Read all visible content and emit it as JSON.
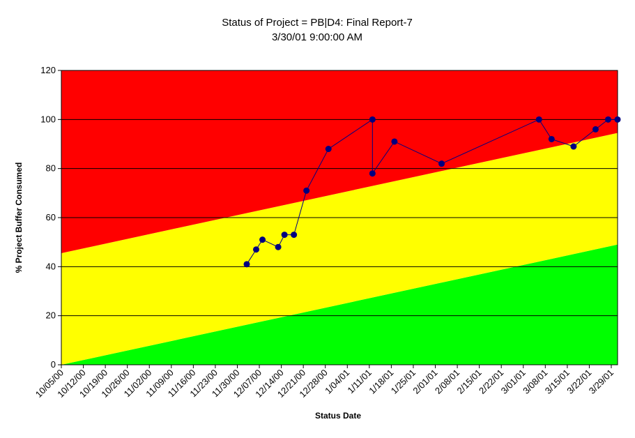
{
  "chart_data": {
    "type": "line",
    "title": "Status of Project = PB|D4: Final Report-7",
    "subtitle": "3/30/01 9:00:00 AM",
    "xlabel": "Status Date",
    "ylabel": "% Project Buffer Consumed",
    "ylim": [
      0,
      120
    ],
    "y_ticks": [
      "0",
      "20",
      "40",
      "60",
      "80",
      "100",
      "120"
    ],
    "y_tick_values": [
      0,
      20,
      40,
      60,
      80,
      100,
      120
    ],
    "x_start": "2000-10-05",
    "x_end": "2001-03-31",
    "x_ticks": [
      "10/05/00",
      "10/12/00",
      "10/19/00",
      "10/26/00",
      "11/02/00",
      "11/09/00",
      "11/16/00",
      "11/23/00",
      "11/30/00",
      "12/07/00",
      "12/14/00",
      "12/21/00",
      "12/28/00",
      "1/04/01",
      "1/11/01",
      "1/18/01",
      "1/25/01",
      "2/01/01",
      "2/08/01",
      "2/15/01",
      "2/22/01",
      "3/01/01",
      "3/08/01",
      "3/15/01",
      "3/22/01",
      "3/29/01"
    ],
    "x_tick_dates": [
      "2000-10-05",
      "2000-10-12",
      "2000-10-19",
      "2000-10-26",
      "2000-11-02",
      "2000-11-09",
      "2000-11-16",
      "2000-11-23",
      "2000-11-30",
      "2000-12-07",
      "2000-12-14",
      "2000-12-21",
      "2000-12-28",
      "2001-01-04",
      "2001-01-11",
      "2001-01-18",
      "2001-01-25",
      "2001-02-01",
      "2001-02-08",
      "2001-02-15",
      "2001-02-22",
      "2001-03-01",
      "2001-03-08",
      "2001-03-15",
      "2001-03-22",
      "2001-03-29"
    ],
    "grid": true,
    "zones": [
      {
        "name": "green",
        "color": "#00ff00",
        "upper_start": 0,
        "upper_end": 49
      },
      {
        "name": "yellow",
        "color": "#ffff00",
        "upper_start": 45.5,
        "upper_end": 94.5
      },
      {
        "name": "red",
        "color": "#ff0000",
        "upper_start": 120,
        "upper_end": 120
      }
    ],
    "series": [
      {
        "color": "#000080",
        "points": [
          {
            "x": "2000-12-03",
            "y": 41
          },
          {
            "x": "2000-12-06",
            "y": 47
          },
          {
            "x": "2000-12-08",
            "y": 51
          },
          {
            "x": "2000-12-13",
            "y": 48
          },
          {
            "x": "2000-12-15",
            "y": 53
          },
          {
            "x": "2000-12-18",
            "y": 53
          },
          {
            "x": "2000-12-22",
            "y": 71
          },
          {
            "x": "2000-12-29",
            "y": 88
          },
          {
            "x": "2001-01-12",
            "y": 100
          },
          {
            "x": "2001-01-12",
            "y": 78
          },
          {
            "x": "2001-01-19",
            "y": 91
          },
          {
            "x": "2001-02-03",
            "y": 82
          },
          {
            "x": "2001-03-06",
            "y": 100
          },
          {
            "x": "2001-03-10",
            "y": 92
          },
          {
            "x": "2001-03-17",
            "y": 89
          },
          {
            "x": "2001-03-24",
            "y": 96
          },
          {
            "x": "2001-03-28",
            "y": 100
          },
          {
            "x": "2001-03-31",
            "y": 100
          }
        ]
      }
    ]
  }
}
